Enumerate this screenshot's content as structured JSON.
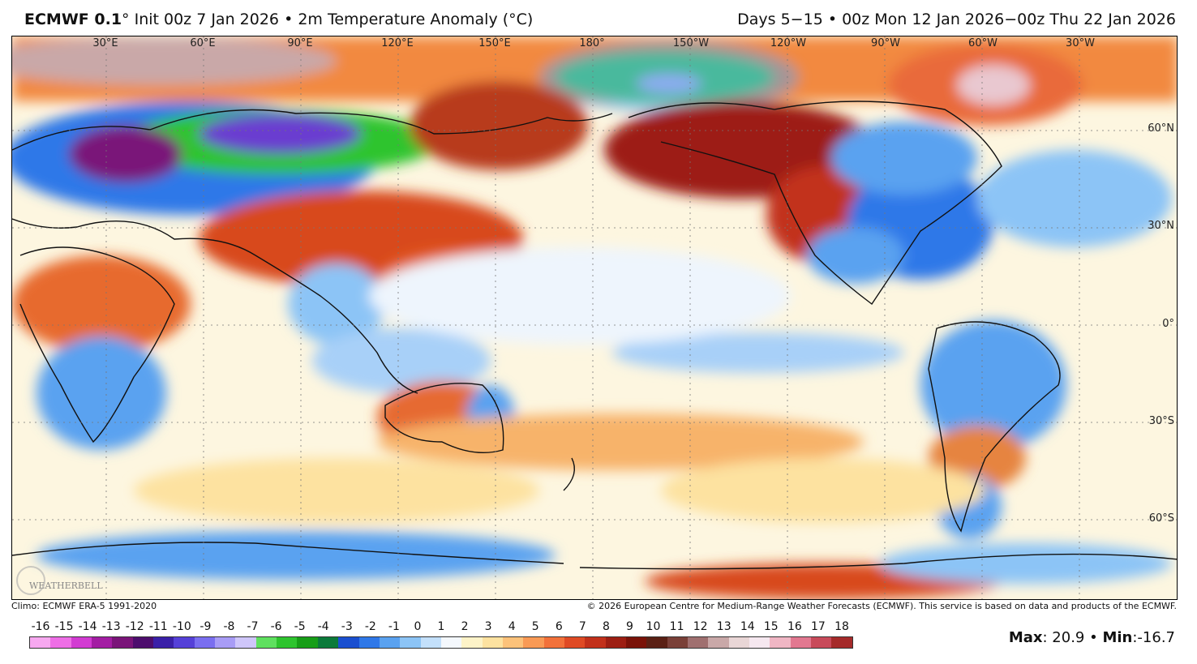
{
  "header": {
    "model": "ECMWF 0.1",
    "init": "Init 00z 7 Jan 2026",
    "product": "2m Temperature Anomaly (°C)",
    "valid": "Days 5−15 • 00z Mon 12 Jan 2026−00z Thu 22 Jan 2026"
  },
  "map": {
    "longitude_labels": [
      "30°E",
      "60°E",
      "90°E",
      "120°E",
      "150°E",
      "180°",
      "150°W",
      "120°W",
      "90°W",
      "60°W",
      "30°W"
    ],
    "latitude_labels": [
      "60°N",
      "30°N",
      "0°",
      "30°S",
      "60°S"
    ],
    "logo_text": "WEATHERBELL"
  },
  "footer": {
    "climo": "Climo: ECMWF ERA-5 1991-2020",
    "copyright": "© 2026 European Centre for Medium-Range Weather Forecasts (ECMWF). This service is based on data and products of the ECMWF."
  },
  "colorbar": {
    "labels": [
      "-16",
      "-15",
      "-14",
      "-13",
      "-12",
      "-11",
      "-10",
      "-9",
      "-8",
      "-7",
      "-6",
      "-5",
      "-4",
      "-3",
      "-2",
      "-1",
      "0",
      "1",
      "2",
      "3",
      "4",
      "5",
      "6",
      "7",
      "8",
      "9",
      "10",
      "11",
      "12",
      "13",
      "14",
      "15",
      "16",
      "17",
      "18"
    ],
    "colors": [
      "#f7a8f0",
      "#ee6ee6",
      "#d23bd2",
      "#a31da3",
      "#7a1479",
      "#4d0d6d",
      "#3a20a8",
      "#5540d8",
      "#7a6ef0",
      "#a89cf6",
      "#cfc6fa",
      "#5fe05f",
      "#2ec42e",
      "#179e17",
      "#0b7a3a",
      "#1a4fd0",
      "#2f78e8",
      "#5aa2f0",
      "#8cc4f6",
      "#c3e0fb",
      "#f4f8fd",
      "#fdf3c8",
      "#fde2a0",
      "#fcc27a",
      "#f99a55",
      "#f2713a",
      "#df4a24",
      "#c2301a",
      "#9d1e12",
      "#7a1208",
      "#5a2014",
      "#7a4038",
      "#a07070",
      "#c9a8a8",
      "#e9d6d6",
      "#f6e8f0",
      "#f0b6c4",
      "#e27890",
      "#c84a5a",
      "#a52a2a"
    ]
  },
  "stats": {
    "max_label": "Max",
    "max_value": ": 20.9",
    "sep": " • ",
    "min_label": "Min",
    "min_value": ":-16.7"
  }
}
